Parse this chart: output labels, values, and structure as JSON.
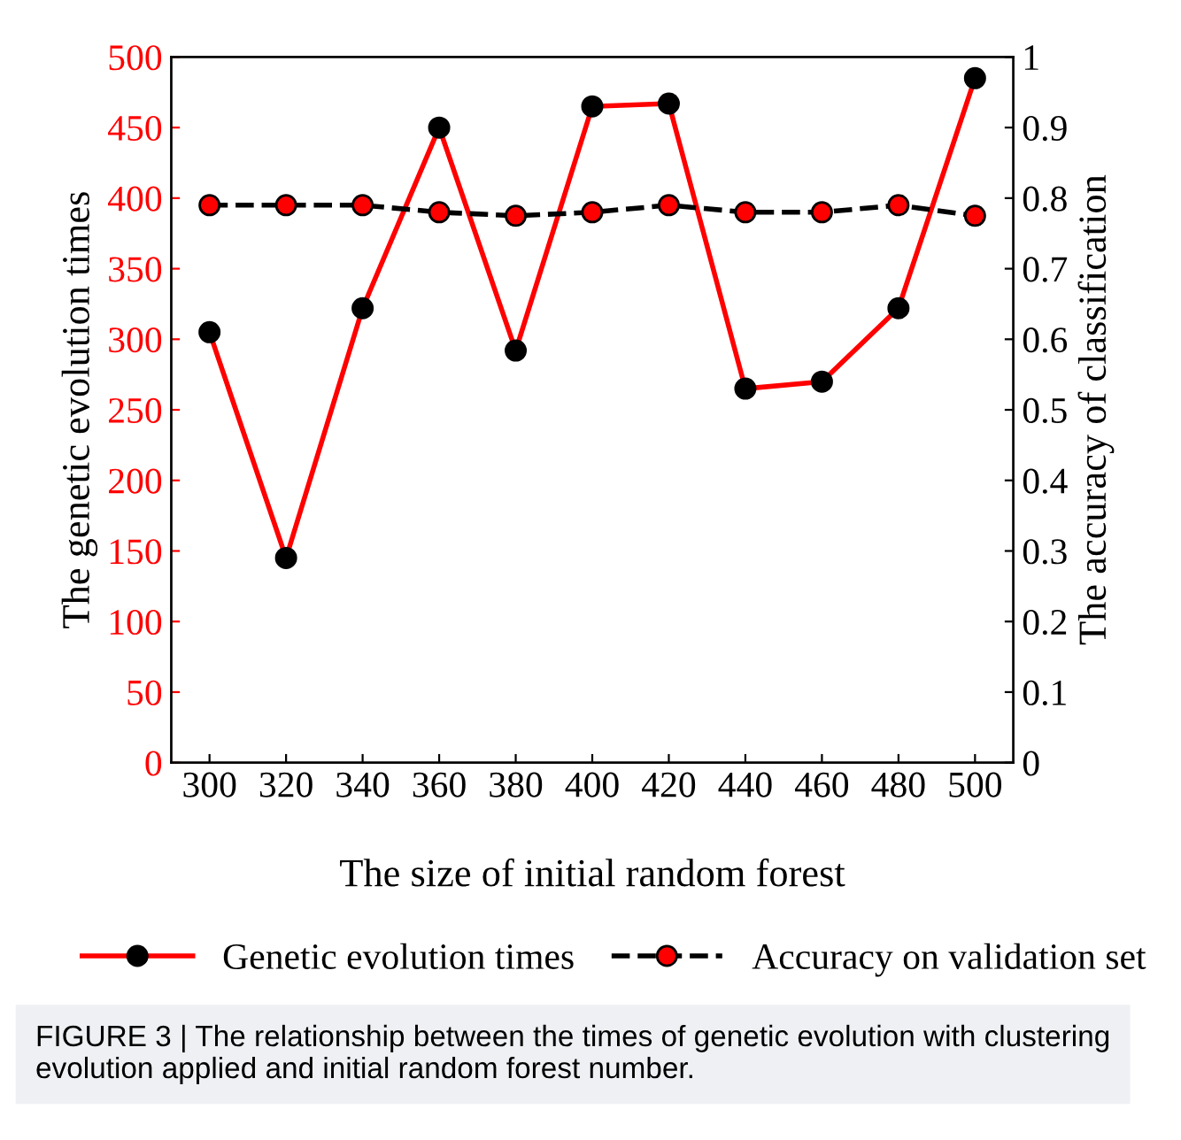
{
  "chart_data": {
    "type": "line",
    "xlabel": "The size of initial random forest",
    "ylabel": "The genetic evolution times",
    "y2label": "The accuracy of classification",
    "x": [
      300,
      320,
      340,
      360,
      380,
      400,
      420,
      440,
      460,
      480,
      500
    ],
    "series": [
      {
        "name": "Genetic evolution times",
        "color": "#ff0000",
        "line_style": "solid",
        "values": [
          305,
          145,
          322,
          450,
          292,
          465,
          467,
          265,
          270,
          322,
          485
        ]
      },
      {
        "name": "Accuracy on validation set",
        "color": "#000000",
        "line_style": "dashed",
        "axis": "y2",
        "values": [
          0.79,
          0.79,
          0.79,
          0.78,
          0.775,
          0.78,
          0.79,
          0.78,
          0.78,
          0.79,
          0.775
        ]
      }
    ],
    "xlim": [
      290,
      510
    ],
    "xticks": [
      300,
      320,
      340,
      360,
      380,
      400,
      420,
      440,
      460,
      480,
      500
    ],
    "ylim": [
      0,
      500
    ],
    "yticks": [
      0,
      50,
      100,
      150,
      200,
      250,
      300,
      350,
      400,
      450,
      500
    ],
    "y2lim": [
      0,
      1
    ],
    "y2ticks": [
      0,
      0.1,
      0.2,
      0.3,
      0.4,
      0.5,
      0.6,
      0.7,
      0.8,
      0.9,
      1
    ],
    "marker": "circle",
    "grid": false,
    "legend": "bottom",
    "annotations": [
      "FIGURE 3 | The relationship between the times of genetic evolution with clustering evolution applied and initial random forest number."
    ]
  }
}
